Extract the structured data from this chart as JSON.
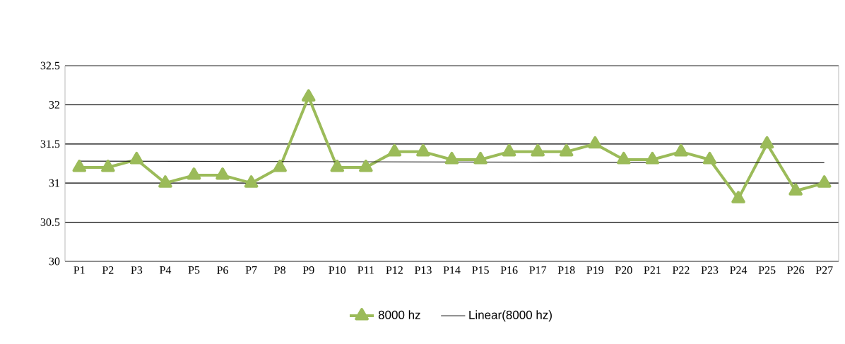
{
  "chart_data": {
    "type": "line",
    "categories": [
      "P1",
      "P2",
      "P3",
      "P4",
      "P5",
      "P6",
      "P7",
      "P8",
      "P9",
      "P10",
      "P11",
      "P12",
      "P13",
      "P14",
      "P15",
      "P16",
      "P17",
      "P18",
      "P19",
      "P20",
      "P21",
      "P22",
      "P23",
      "P24",
      "P25",
      "P26",
      "P27"
    ],
    "series": [
      {
        "name": "8000 hz",
        "color": "#9bbb59",
        "marker": "triangle",
        "values": [
          31.2,
          31.2,
          31.3,
          31.0,
          31.1,
          31.1,
          31.0,
          31.2,
          32.1,
          31.2,
          31.2,
          31.4,
          31.4,
          31.3,
          31.3,
          31.4,
          31.4,
          31.4,
          31.5,
          31.3,
          31.3,
          31.4,
          31.3,
          30.8,
          31.5,
          30.9,
          31.0
        ]
      },
      {
        "name": "Linear(8000 hz)",
        "color": "#262626",
        "type": "line",
        "marker": "none",
        "x": [
          "P1",
          "P27"
        ],
        "values": [
          31.28,
          31.26
        ]
      }
    ],
    "ylim": [
      30,
      32.5
    ],
    "yticks": [
      30,
      30.5,
      31,
      31.5,
      32,
      32.5
    ],
    "grid": "y",
    "legend": "bottom"
  }
}
